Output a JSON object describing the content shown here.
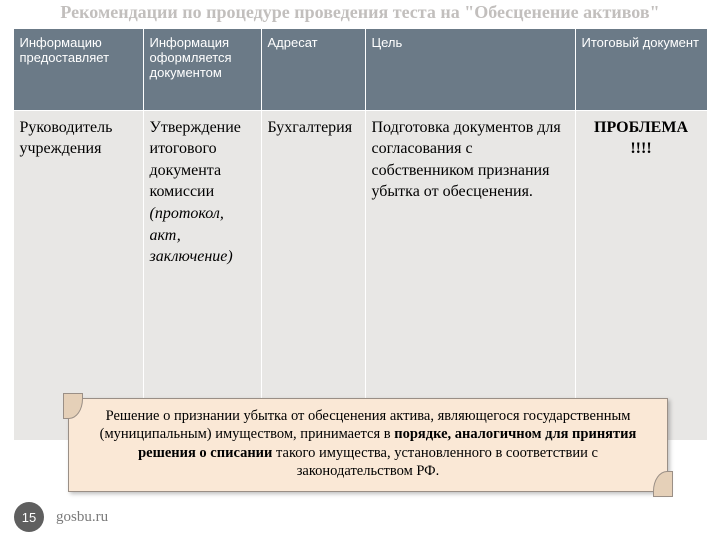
{
  "title": "Рекомендации по процедуре проведения теста на \"Обесценение активов\"",
  "table": {
    "headers": [
      "Информацию предоставляет",
      "Информация оформляется документом",
      "Адресат",
      "Цель",
      "Итоговый документ"
    ],
    "row": {
      "c0": "Руководитель учреждения",
      "c1_main": "Утверждение итогового документа комиссии",
      "c1_italic": "(протокол, акт, заключение)",
      "c2": "Бухгалтерия",
      "c3": "Подготовка документов для согласования с собственником признания убытка от обесценения.",
      "c4_line1": "ПРОБЛЕМА",
      "c4_line2": "!!!!"
    },
    "header_bg": "#6b7a87",
    "header_fg": "#ffffff",
    "cell_bg": "#e8e7e5"
  },
  "callout": {
    "pre": "Решение о признании убытка от обесценения актива, являющегося государственным (муниципальным) имуществом, принимается в ",
    "bold": "порядке, аналогичном для принятия решения о списании",
    "post": " такого имущества, установленного в соответствии с законодательством РФ.",
    "bg": "#fae8d6"
  },
  "footer": {
    "page": "15",
    "site": "gosbu.ru"
  }
}
